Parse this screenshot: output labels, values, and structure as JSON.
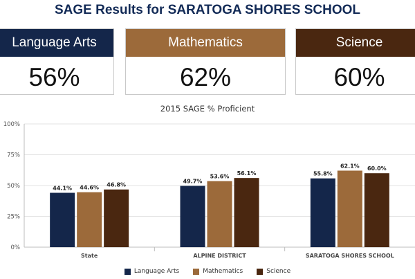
{
  "page": {
    "title": "SAGE Results for SARATOGA SHORES SCHOOL"
  },
  "colors": {
    "title": "#132b57",
    "language_arts": "#14264a",
    "mathematics": "#9c6a3a",
    "science": "#4a2710"
  },
  "cards": [
    {
      "label": "Language Arts",
      "value": "56%"
    },
    {
      "label": "Mathematics",
      "value": "62%"
    },
    {
      "label": "Science",
      "value": "60%"
    }
  ],
  "chart_data": {
    "type": "bar",
    "title": "2015 SAGE % Proficient",
    "xlabel": "",
    "ylabel": "",
    "categories": [
      "State",
      "ALPINE DISTRICT",
      "SARATOGA SHORES SCHOOL"
    ],
    "series": [
      {
        "name": "Language Arts",
        "values": [
          44.1,
          49.7,
          55.8
        ],
        "labels": [
          "44.1%",
          "49.7%",
          "55.8%"
        ],
        "color": "#14264a"
      },
      {
        "name": "Mathematics",
        "values": [
          44.6,
          53.6,
          62.1
        ],
        "labels": [
          "44.6%",
          "53.6%",
          "62.1%"
        ],
        "color": "#9c6a3a"
      },
      {
        "name": "Science",
        "values": [
          46.8,
          56.1,
          60.0
        ],
        "labels": [
          "46.8%",
          "56.1%",
          "60.0%"
        ],
        "color": "#4a2710"
      }
    ],
    "ylim": [
      0,
      100
    ],
    "yticks": [
      0,
      25,
      50,
      75,
      100
    ],
    "ytick_labels": [
      "0%",
      "25%",
      "50%",
      "75%",
      "100%"
    ],
    "grid": true,
    "legend": "bottom-center"
  }
}
